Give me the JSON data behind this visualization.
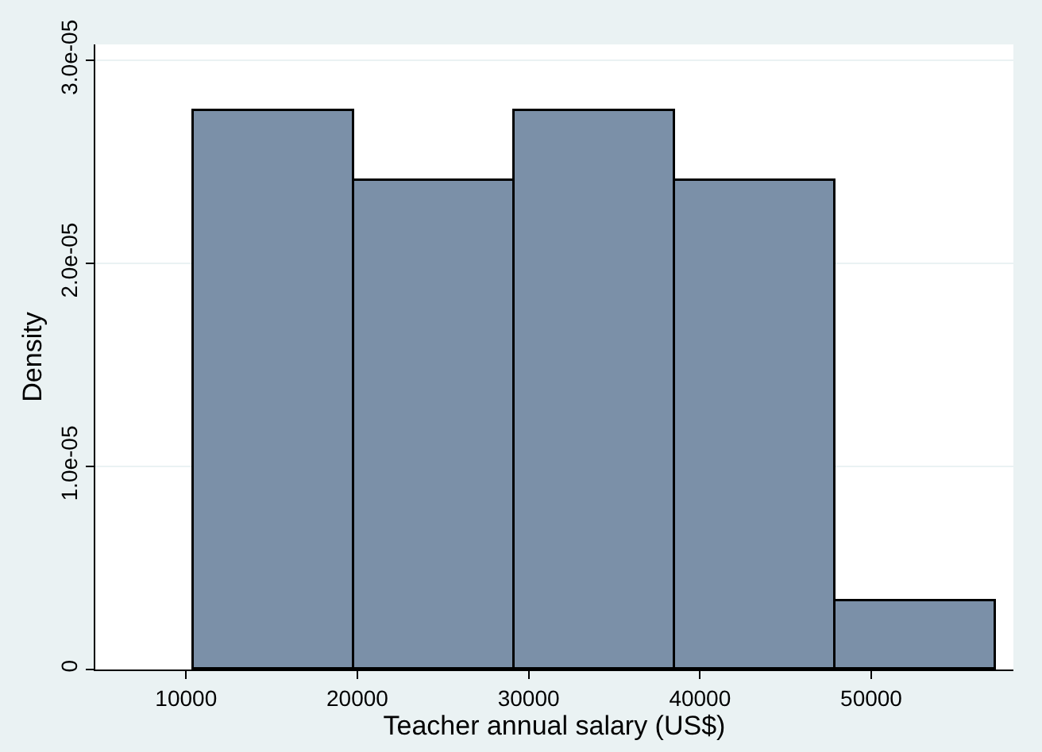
{
  "chart_data": {
    "type": "histogram",
    "xlabel": "Teacher annual salary (US$)",
    "ylabel": "Density",
    "bins": [
      10460,
      19830,
      29200,
      38570,
      47940,
      57310
    ],
    "values": [
      2.75e-05,
      2.41e-05,
      2.75e-05,
      2.41e-05,
      3.4e-06
    ],
    "color": "#7b90a8",
    "xlim": [
      4700,
      58300
    ],
    "xticks": [
      10000,
      20000,
      30000,
      40000,
      50000
    ],
    "ylim": [
      0,
      3.08e-05
    ],
    "yticks": [
      {
        "value": 0,
        "label": "0"
      },
      {
        "value": 1e-05,
        "label": "1.0e-05"
      },
      {
        "value": 2e-05,
        "label": "2.0e-05"
      },
      {
        "value": 3e-05,
        "label": "3.0e-05"
      }
    ],
    "grid": "y"
  }
}
